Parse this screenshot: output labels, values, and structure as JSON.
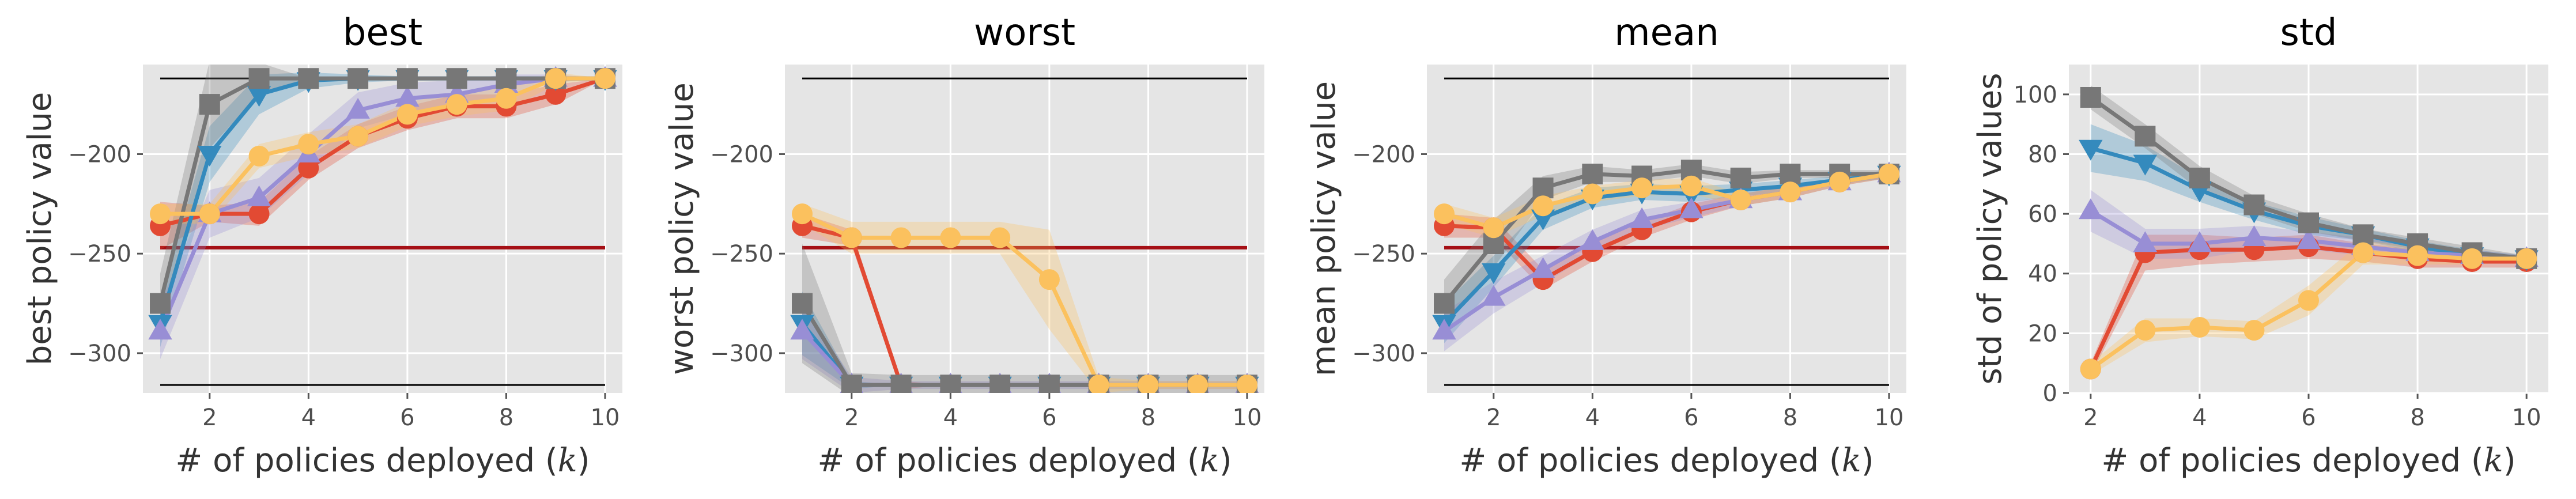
{
  "chart_data": [
    {
      "type": "line",
      "title": "best",
      "xlabel": "# of policies deployed (k)",
      "ylabel": "best policy value",
      "xlim": [
        0.65,
        10.35
      ],
      "ylim": [
        -320,
        -155
      ],
      "xticks": [
        2,
        4,
        6,
        8,
        10
      ],
      "yticks": [
        -300,
        -250,
        -200
      ],
      "grid": true,
      "hlines": [
        {
          "y": -162,
          "color": "#000000"
        },
        {
          "y": -316,
          "color": "#000000"
        },
        {
          "y": -247,
          "color": "#a50f15"
        }
      ],
      "series": [
        {
          "color": "#e24a33",
          "marker": "circle",
          "x": [
            1,
            2,
            3,
            4,
            5,
            6,
            7,
            8,
            9,
            10
          ],
          "values": [
            -236,
            -230,
            -230,
            -207,
            -191,
            -182,
            -176,
            -176,
            -170,
            -162
          ],
          "band": [
            12,
            4,
            6,
            6,
            6,
            6,
            6,
            6,
            5,
            0
          ]
        },
        {
          "color": "#348abd",
          "marker": "triangle-down",
          "x": [
            1,
            2,
            3,
            4,
            5,
            6,
            7,
            8,
            9,
            10
          ],
          "values": [
            -285,
            -200,
            -170,
            -163,
            -162,
            -162,
            -162,
            -162,
            -162,
            -162
          ],
          "band": [
            12,
            14,
            10,
            4,
            2,
            1,
            1,
            0,
            0,
            0
          ]
        },
        {
          "color": "#988ed5",
          "marker": "triangle-up",
          "x": [
            1,
            2,
            3,
            4,
            5,
            6,
            7,
            8,
            9,
            10
          ],
          "values": [
            -289,
            -230,
            -222,
            -200,
            -178,
            -172,
            -170,
            -165,
            -162,
            -162
          ],
          "band": [
            14,
            12,
            10,
            10,
            9,
            8,
            7,
            5,
            2,
            0
          ]
        },
        {
          "color": "#777777",
          "marker": "square",
          "x": [
            1,
            2,
            3,
            4,
            5,
            6,
            7,
            8,
            9,
            10
          ],
          "values": [
            -275,
            -175,
            -162,
            -162,
            -162,
            -162,
            -162,
            -162,
            -162,
            -162
          ],
          "band": [
            15,
            22,
            8,
            0,
            0,
            0,
            0,
            0,
            0,
            0
          ]
        },
        {
          "color": "#fbc15e",
          "marker": "circle",
          "x": [
            1,
            2,
            3,
            4,
            5,
            6,
            7,
            8,
            9,
            10
          ],
          "values": [
            -230,
            -230,
            -201,
            -195,
            -191,
            -180,
            -175,
            -172,
            -162,
            -162
          ],
          "band": [
            5,
            5,
            6,
            6,
            6,
            6,
            6,
            6,
            3,
            0
          ]
        }
      ]
    },
    {
      "type": "line",
      "title": "worst",
      "xlabel": "# of policies deployed (k)",
      "ylabel": "worst policy value",
      "xlim": [
        0.65,
        10.35
      ],
      "ylim": [
        -320,
        -155
      ],
      "xticks": [
        2,
        4,
        6,
        8,
        10
      ],
      "yticks": [
        -300,
        -250,
        -200
      ],
      "grid": true,
      "hlines": [
        {
          "y": -162,
          "color": "#000000"
        },
        {
          "y": -247,
          "color": "#a50f15"
        }
      ],
      "series": [
        {
          "color": "#e24a33",
          "marker": "circle",
          "x": [
            1,
            2,
            3,
            4,
            5,
            6,
            7,
            8,
            9,
            10
          ],
          "values": [
            -236,
            -242,
            -316,
            -316,
            -316,
            -316,
            -316,
            -316,
            -316,
            -316
          ],
          "band": [
            6,
            4,
            2,
            0,
            0,
            0,
            0,
            0,
            0,
            0
          ]
        },
        {
          "color": "#348abd",
          "marker": "triangle-down",
          "x": [
            1,
            2,
            3,
            4,
            5,
            6,
            7,
            8,
            9,
            10
          ],
          "values": [
            -285,
            -316,
            -316,
            -316,
            -316,
            -316,
            -316,
            -316,
            -316,
            -316
          ],
          "band": [
            16,
            2,
            0,
            0,
            0,
            0,
            0,
            0,
            0,
            0
          ]
        },
        {
          "color": "#988ed5",
          "marker": "triangle-up",
          "x": [
            1,
            2,
            3,
            4,
            5,
            6,
            7,
            8,
            9,
            10
          ],
          "values": [
            -289,
            -316,
            -316,
            -316,
            -316,
            -316,
            -316,
            -316,
            -316,
            -316
          ],
          "band": [
            14,
            4,
            2,
            2,
            2,
            2,
            2,
            2,
            2,
            2
          ]
        },
        {
          "color": "#777777",
          "marker": "square",
          "x": [
            1,
            2,
            3,
            4,
            5,
            6,
            7,
            8,
            9,
            10
          ],
          "values": [
            -275,
            -316,
            -316,
            -316,
            -316,
            -316,
            -316,
            -316,
            -316,
            -316
          ],
          "band": [
            30,
            6,
            5,
            5,
            5,
            5,
            5,
            5,
            5,
            5
          ]
        },
        {
          "color": "#fbc15e",
          "marker": "circle",
          "x": [
            1,
            2,
            3,
            4,
            5,
            6,
            7,
            8,
            9,
            10
          ],
          "values": [
            -230,
            -242,
            -242,
            -242,
            -242,
            -263,
            -316,
            -316,
            -316,
            -316
          ],
          "band": [
            5,
            8,
            8,
            8,
            8,
            25,
            4,
            2,
            2,
            2
          ]
        }
      ]
    },
    {
      "type": "line",
      "title": "mean",
      "xlabel": "# of policies deployed (k)",
      "ylabel": "mean policy value",
      "xlim": [
        0.65,
        10.35
      ],
      "ylim": [
        -320,
        -155
      ],
      "xticks": [
        2,
        4,
        6,
        8,
        10
      ],
      "yticks": [
        -300,
        -250,
        -200
      ],
      "grid": true,
      "hlines": [
        {
          "y": -162,
          "color": "#000000"
        },
        {
          "y": -316,
          "color": "#000000"
        },
        {
          "y": -247,
          "color": "#a50f15"
        }
      ],
      "series": [
        {
          "color": "#e24a33",
          "marker": "circle",
          "x": [
            1,
            2,
            3,
            4,
            5,
            6,
            7,
            8,
            9,
            10
          ],
          "values": [
            -236,
            -237,
            -263,
            -249,
            -238,
            -229,
            -223,
            -219,
            -214,
            -210
          ],
          "band": [
            6,
            5,
            5,
            5,
            4,
            4,
            3,
            3,
            2,
            2
          ]
        },
        {
          "color": "#348abd",
          "marker": "triangle-down",
          "x": [
            1,
            2,
            3,
            4,
            5,
            6,
            7,
            8,
            9,
            10
          ],
          "values": [
            -285,
            -259,
            -232,
            -222,
            -219,
            -220,
            -218,
            -216,
            -213,
            -210
          ],
          "band": [
            10,
            8,
            6,
            5,
            4,
            4,
            3,
            3,
            2,
            2
          ]
        },
        {
          "color": "#988ed5",
          "marker": "triangle-up",
          "x": [
            1,
            2,
            3,
            4,
            5,
            6,
            7,
            8,
            9,
            10
          ],
          "values": [
            -289,
            -272,
            -258,
            -244,
            -233,
            -228,
            -223,
            -219,
            -214,
            -210
          ],
          "band": [
            10,
            8,
            7,
            6,
            5,
            4,
            3,
            3,
            2,
            2
          ]
        },
        {
          "color": "#777777",
          "marker": "square",
          "x": [
            1,
            2,
            3,
            4,
            5,
            6,
            7,
            8,
            9,
            10
          ],
          "values": [
            -275,
            -245,
            -217,
            -210,
            -211,
            -208,
            -212,
            -210,
            -210,
            -210
          ],
          "band": [
            12,
            12,
            6,
            4,
            3,
            3,
            3,
            2,
            2,
            2
          ]
        },
        {
          "color": "#fbc15e",
          "marker": "circle",
          "x": [
            1,
            2,
            3,
            4,
            5,
            6,
            7,
            8,
            9,
            10
          ],
          "values": [
            -230,
            -237,
            -226,
            -220,
            -217,
            -216,
            -223,
            -219,
            -214,
            -210
          ],
          "band": [
            5,
            5,
            5,
            4,
            4,
            4,
            3,
            3,
            2,
            2
          ]
        }
      ]
    },
    {
      "type": "line",
      "title": "std",
      "xlabel": "# of policies deployed (k)",
      "ylabel": "std of policy values",
      "xlim": [
        1.6,
        10.4
      ],
      "ylim": [
        0,
        110
      ],
      "xticks": [
        2,
        4,
        6,
        8,
        10
      ],
      "yticks": [
        0,
        20,
        40,
        60,
        80,
        100
      ],
      "grid": true,
      "hlines": [],
      "series": [
        {
          "color": "#e24a33",
          "marker": "circle",
          "x": [
            2,
            3,
            4,
            5,
            6,
            7,
            8,
            9,
            10
          ],
          "values": [
            8,
            47,
            48,
            48,
            49,
            47,
            45,
            44,
            44
          ],
          "band": [
            2,
            6,
            5,
            4,
            4,
            3,
            3,
            2,
            2
          ]
        },
        {
          "color": "#348abd",
          "marker": "triangle-down",
          "x": [
            2,
            3,
            4,
            5,
            6,
            7,
            8,
            9,
            10
          ],
          "values": [
            82,
            77,
            68,
            61,
            56,
            53,
            49,
            46,
            45
          ],
          "band": [
            8,
            6,
            4,
            3,
            3,
            2,
            2,
            2,
            1
          ]
        },
        {
          "color": "#988ed5",
          "marker": "triangle-up",
          "x": [
            2,
            3,
            4,
            5,
            6,
            7,
            8,
            9,
            10
          ],
          "values": [
            61,
            50,
            50,
            52,
            51,
            49,
            47,
            46,
            45
          ],
          "band": [
            7,
            5,
            5,
            4,
            3,
            3,
            2,
            2,
            1
          ]
        },
        {
          "color": "#777777",
          "marker": "square",
          "x": [
            2,
            3,
            4,
            5,
            6,
            7,
            8,
            9,
            10
          ],
          "values": [
            99,
            86,
            72,
            63,
            57,
            53,
            50,
            47,
            45
          ],
          "band": [
            4,
            4,
            4,
            3,
            3,
            2,
            2,
            2,
            1
          ]
        },
        {
          "color": "#fbc15e",
          "marker": "circle",
          "x": [
            2,
            3,
            4,
            5,
            6,
            7,
            8,
            9,
            10
          ],
          "values": [
            8,
            21,
            22,
            21,
            31,
            47,
            46,
            45,
            45
          ],
          "band": [
            2,
            4,
            3,
            3,
            5,
            4,
            3,
            2,
            1
          ]
        }
      ]
    }
  ],
  "colors": {
    "panel_bg": "#e5e5e5",
    "grid": "#ffffff"
  }
}
